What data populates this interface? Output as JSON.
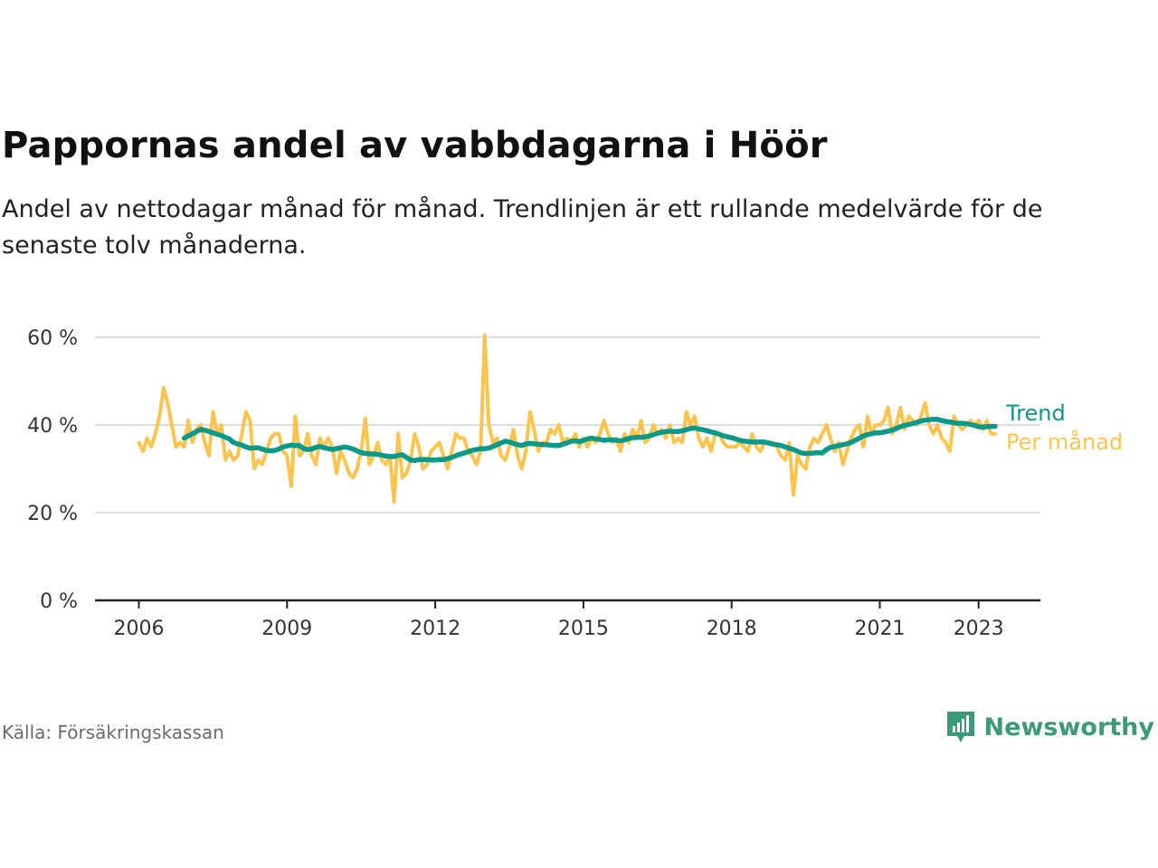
{
  "header": {
    "title": "Pappornas andel av vabbdagarna i Höör",
    "subtitle": "Andel av nettodagar månad för månad. Trendlinjen är ett rullande medelvärde för de senaste tolv månaderna."
  },
  "footer": {
    "source": "Källa: Försäkringskassan",
    "brand": "Newsworthy",
    "brand_icon": "bar-chart-speech-bubble-icon"
  },
  "colors": {
    "monthly": "#fcc44c",
    "trend": "#0b9a8a",
    "grid": "#dddddd",
    "axis": "#222222",
    "brand": "#3a9a7a"
  },
  "chart_data": {
    "type": "line",
    "title": "Pappornas andel av vabbdagarna i Höör",
    "xlabel": "",
    "ylabel": "",
    "ylim": [
      0,
      60
    ],
    "y_ticks": [
      0,
      20,
      40,
      60
    ],
    "y_tick_labels": [
      "0 %",
      "20 %",
      "40 %",
      "60 %"
    ],
    "x_ticks": [
      2006,
      2009,
      2012,
      2015,
      2018,
      2021,
      2023
    ],
    "x_tick_labels": [
      "2006",
      "2009",
      "2012",
      "2015",
      "2018",
      "2021",
      "2023"
    ],
    "x_range": [
      "2006-01",
      "2023-05"
    ],
    "grid": "horizontal",
    "legend": "right-end labels",
    "series": [
      {
        "name": "Trend",
        "color": "#0b9a8a",
        "start": "2006-12",
        "values": [
          37,
          37.5,
          38,
          38.5,
          39,
          38.8,
          38.5,
          38.2,
          37.9,
          37.6,
          37.2,
          36.8,
          36,
          35.7,
          35.4,
          35,
          34.7,
          34.8,
          34.8,
          34.5,
          34.2,
          34.1,
          34.2,
          34.5,
          35,
          35.2,
          35.4,
          35.3,
          35.3,
          34.6,
          34.4,
          34.5,
          34.9,
          35.1,
          34.8,
          34.6,
          34.4,
          34.6,
          34.8,
          35,
          34.8,
          34.5,
          34.1,
          33.7,
          33.5,
          33.4,
          33.4,
          33.3,
          33.1,
          32.9,
          32.8,
          32.8,
          33.1,
          33.2,
          32.6,
          32,
          31.9,
          32.1,
          32.1,
          32.1,
          32,
          32,
          32.1,
          32.1,
          32.3,
          32.6,
          33,
          33.3,
          33.6,
          33.9,
          34.2,
          34.4,
          34.6,
          34.6,
          34.7,
          35.1,
          35.5,
          35.9,
          36.3,
          36.1,
          35.8,
          35.5,
          35.3,
          35.7,
          35.8,
          35.7,
          35.6,
          35.5,
          35.5,
          35.4,
          35.3,
          35.3,
          35.6,
          35.9,
          36.3,
          36.4,
          36.2,
          36.5,
          36.8,
          37,
          36.8,
          36.7,
          36.5,
          36.6,
          36.6,
          36.5,
          36.4,
          36.6,
          36.9,
          37.1,
          37.2,
          37.2,
          37.3,
          37.5,
          37.8,
          38.1,
          38.3,
          38.5,
          38.6,
          38.5,
          38.5,
          38.7,
          38.9,
          39.2,
          39.3,
          39.1,
          38.9,
          38.7,
          38.4,
          38.2,
          37.9,
          37.5,
          37.3,
          37.1,
          36.8,
          36.5,
          36.3,
          36.2,
          36.1,
          36.1,
          36.1,
          36.1,
          35.9,
          35.6,
          35.5,
          35.3,
          35,
          34.7,
          34.4,
          34,
          33.6,
          33.5,
          33.5,
          33.6,
          33.7,
          33.6,
          34.4,
          34.9,
          35.1,
          35.3,
          35.5,
          35.7,
          36,
          36.5,
          37,
          37.5,
          37.8,
          38,
          38.2,
          38.2,
          38.4,
          38.6,
          38.8,
          39.2,
          39.6,
          39.9,
          40.1,
          40.3,
          40.6,
          40.9,
          41.1,
          41.2,
          41.3,
          41.3,
          41,
          40.8,
          40.7,
          40.5,
          40.4,
          40.4,
          40.3,
          40.1,
          39.9,
          39.6,
          39.5,
          39.6,
          39.7,
          39.7
        ]
      },
      {
        "name": "Per månad",
        "color": "#fcc44c",
        "start": "2006-01",
        "values": [
          36,
          34,
          37,
          35,
          38,
          42,
          48.5,
          45,
          40,
          35,
          36,
          35,
          41,
          36,
          39,
          40,
          36,
          33,
          43,
          38,
          40,
          32,
          34,
          32,
          33,
          38,
          43,
          41,
          30,
          32,
          31,
          34,
          37,
          38,
          38,
          34,
          33,
          26,
          42,
          33,
          34,
          38,
          33,
          31,
          37,
          35,
          37,
          35,
          29,
          34,
          32,
          29,
          28,
          30,
          34,
          41.5,
          31,
          33,
          36,
          32,
          31,
          33,
          22.5,
          38,
          28,
          29,
          32,
          38,
          35,
          30,
          31,
          34,
          35,
          36,
          33,
          30,
          34,
          38,
          37,
          37,
          34,
          33,
          31,
          34,
          60.5,
          40,
          36,
          37,
          33,
          32,
          35,
          39,
          33,
          30,
          34,
          43,
          39,
          34,
          36,
          36,
          39,
          38,
          40,
          36,
          37,
          36,
          38,
          35,
          37,
          35,
          37,
          36,
          38,
          41,
          38,
          36,
          37,
          34,
          38,
          36,
          39,
          37,
          41,
          36,
          37,
          40,
          38,
          39,
          37,
          40,
          36,
          37,
          36,
          43,
          40,
          42,
          37,
          35,
          37,
          34,
          38,
          38,
          36,
          35,
          35,
          35,
          36,
          35,
          34,
          38,
          35,
          34,
          36,
          36,
          36,
          35,
          33,
          32,
          36,
          24,
          33,
          31,
          30,
          35,
          37,
          36,
          38,
          40,
          37,
          34,
          36,
          31,
          34,
          37,
          39,
          40,
          35,
          42,
          38,
          40,
          40,
          41,
          44,
          38,
          40,
          44,
          39,
          42,
          41,
          40,
          42,
          45,
          40,
          38,
          40,
          37,
          36,
          34,
          42,
          40,
          39,
          40,
          41,
          40,
          41,
          39,
          41,
          38,
          38
        ]
      }
    ]
  }
}
